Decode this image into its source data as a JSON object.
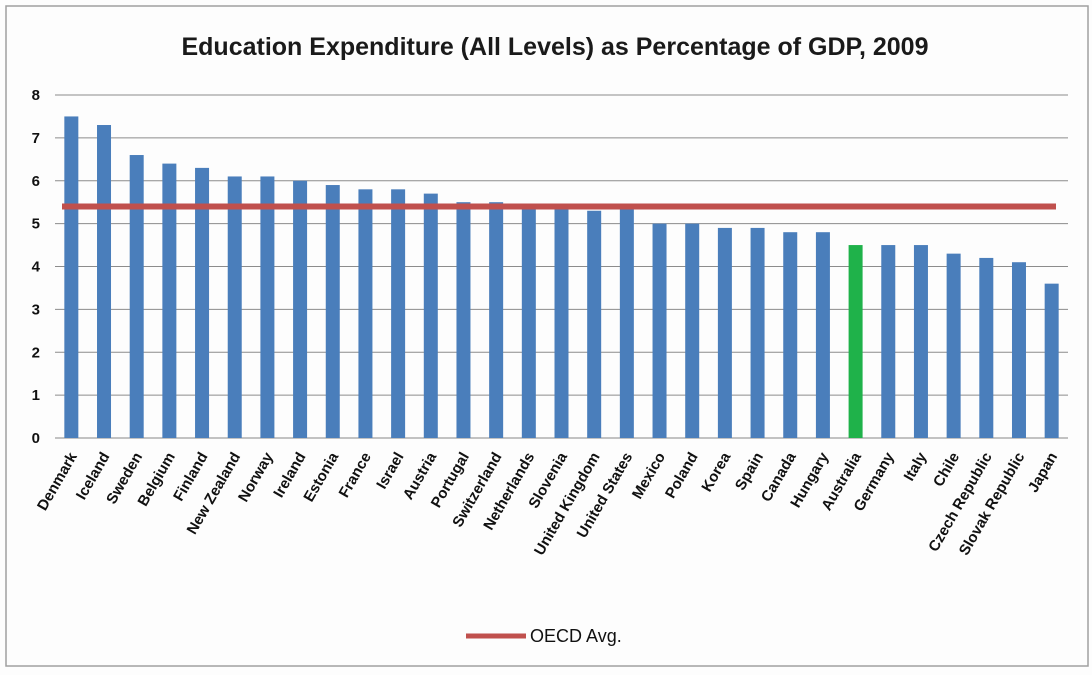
{
  "chart_data": {
    "type": "bar",
    "title": "Education Expenditure (All Levels) as Percentage of GDP, 2009",
    "xlabel": "",
    "ylabel": "",
    "ylim": [
      0,
      8
    ],
    "yticks": [
      0,
      1,
      2,
      3,
      4,
      5,
      6,
      7,
      8
    ],
    "grid": true,
    "legend_position": "bottom",
    "categories": [
      "Denmark",
      "Iceland",
      "Sweden",
      "Belgium",
      "Finland",
      "New Zealand",
      "Norway",
      "Ireland",
      "Estonia",
      "France",
      "Israel",
      "Austria",
      "Portugal",
      "Switzerland",
      "Netherlands",
      "Slovenia",
      "United Kingdom",
      "United States",
      "Mexico",
      "Poland",
      "Korea",
      "Spain",
      "Canada",
      "Hungary",
      "Australia",
      "Germany",
      "Italy",
      "Chile",
      "Czech Republic",
      "Slovak Republic",
      "Japan"
    ],
    "series": [
      {
        "values": [
          7.5,
          7.3,
          6.6,
          6.4,
          6.3,
          6.1,
          6.1,
          6.0,
          5.9,
          5.8,
          5.8,
          5.7,
          5.5,
          5.5,
          5.4,
          5.4,
          5.3,
          5.4,
          5.0,
          5.0,
          4.9,
          4.9,
          4.8,
          4.8,
          4.5,
          4.5,
          4.5,
          4.3,
          4.2,
          4.1,
          3.6
        ],
        "color": "#4a7ebb",
        "highlight_category": "Australia",
        "highlight_color": "#1fb24a"
      },
      {
        "name": "OECD Avg.",
        "type": "line",
        "value": 5.4,
        "color": "#c0504d"
      }
    ]
  }
}
